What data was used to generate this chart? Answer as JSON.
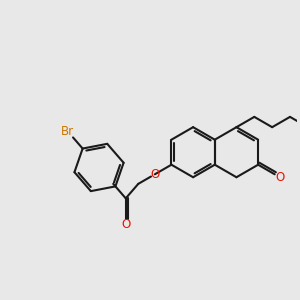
{
  "bg_color": "#e8e8e8",
  "bond_color": "#1a1a1a",
  "oxygen_color": "#ee1100",
  "bromine_color": "#cc7700",
  "line_width": 1.5,
  "font_size": 8.5,
  "xlim": [
    0,
    10
  ],
  "ylim": [
    0,
    10
  ]
}
